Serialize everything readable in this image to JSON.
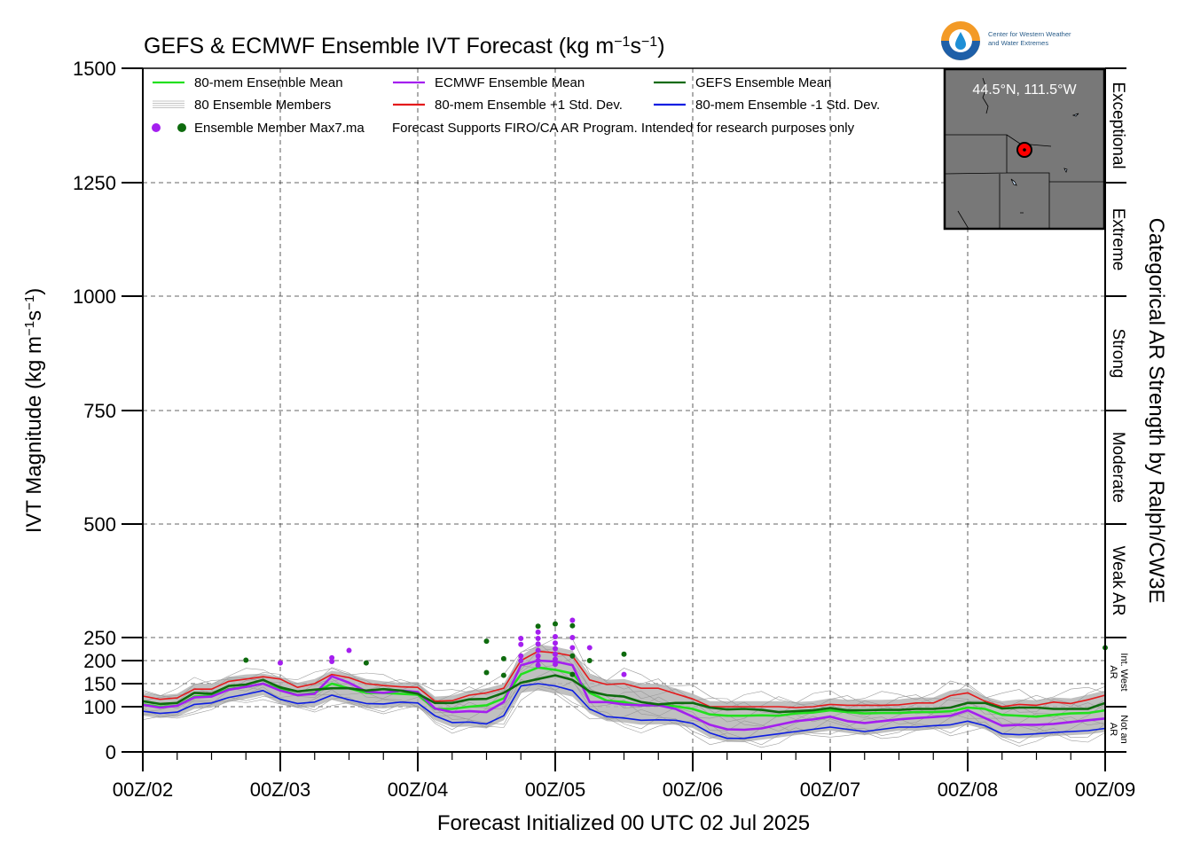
{
  "chart_data": {
    "type": "line",
    "title_main": "GEFS & ECMWF Ensemble IVT Forecast (kg m",
    "title_exp1": "−1",
    "title_mid": "s",
    "title_exp2": "−1",
    "title_end": ")",
    "ylabel_main": "IVT Magnitude (kg m",
    "ylabel_exp1": "−1",
    "ylabel_mid": "s",
    "ylabel_exp2": "−1",
    "ylabel_end": ")",
    "xlabel": "Forecast Initialized 00 UTC 02 Jul 2025",
    "right_label": "Categorical AR Strength by Ralph/CW3E",
    "y_scale": "piecewise-linear",
    "y_axis_breaks": [
      0,
      100,
      150,
      200,
      250,
      500,
      750,
      1000,
      1250,
      1500
    ],
    "ylim": [
      0,
      1500
    ],
    "xlim": [
      0,
      168
    ],
    "x_unit": "forecast hours",
    "y_ticks": [
      "0",
      "100",
      "150",
      "200",
      "250",
      "500",
      "750",
      "1000",
      "1250",
      "1500"
    ],
    "x_ticks": [
      {
        "x": 0,
        "label": "00Z/02"
      },
      {
        "x": 24,
        "label": "00Z/03"
      },
      {
        "x": 48,
        "label": "00Z/04"
      },
      {
        "x": 72,
        "label": "00Z/05"
      },
      {
        "x": 96,
        "label": "00Z/06"
      },
      {
        "x": 120,
        "label": "00Z/07"
      },
      {
        "x": 144,
        "label": "00Z/08"
      },
      {
        "x": 168,
        "label": "00Z/09"
      }
    ],
    "grid": true,
    "legend_location": "top-left",
    "categories": [
      {
        "label": "Not an AR",
        "lines": [
          "Not an",
          "AR"
        ],
        "range": [
          0,
          100
        ],
        "small": true
      },
      {
        "label": "Int. West AR",
        "lines": [
          "Int. West",
          "AR"
        ],
        "range": [
          100,
          250
        ],
        "small": true
      },
      {
        "label": "Weak AR",
        "lines": [
          "Weak AR"
        ],
        "range": [
          250,
          500
        ],
        "small": false
      },
      {
        "label": "Moderate",
        "lines": [
          "Moderate"
        ],
        "range": [
          500,
          750
        ],
        "small": false
      },
      {
        "label": "Strong",
        "lines": [
          "Strong"
        ],
        "range": [
          750,
          1000
        ],
        "small": false
      },
      {
        "label": "Extreme",
        "lines": [
          "Extreme"
        ],
        "range": [
          1000,
          1250
        ],
        "small": false
      },
      {
        "label": "Exceptional",
        "lines": [
          "Exceptional"
        ],
        "range": [
          1250,
          1500
        ],
        "small": false
      }
    ],
    "series": [
      {
        "name": "80-mem Ensemble +1 Std. Dev.",
        "color": "#e41a1c",
        "x": [
          0,
          3,
          6,
          9,
          12,
          15,
          18,
          21,
          24,
          27,
          30,
          33,
          36,
          39,
          42,
          45,
          48,
          51,
          54,
          57,
          60,
          63,
          66,
          69,
          72,
          75,
          78,
          81,
          84,
          87,
          90,
          93,
          96,
          99,
          102,
          105,
          108,
          111,
          114,
          117,
          120,
          123,
          126,
          129,
          132,
          135,
          138,
          141,
          144,
          147,
          150,
          153,
          156,
          159,
          162,
          165,
          168
        ],
        "y": [
          123,
          116,
          119,
          138,
          138,
          155,
          160,
          165,
          160,
          142,
          150,
          170,
          163,
          150,
          146,
          143,
          142,
          112,
          113,
          125,
          130,
          140,
          200,
          220,
          217,
          210,
          158,
          148,
          150,
          140,
          140,
          128,
          117,
          100,
          100,
          100,
          100,
          100,
          98,
          100,
          105,
          103,
          103,
          103,
          104,
          108,
          108,
          124,
          130,
          112,
          100,
          105,
          103,
          110,
          107,
          115,
          125
        ]
      },
      {
        "name": "80-mem Ensemble Mean",
        "color": "#22e01e",
        "x": [
          0,
          3,
          6,
          9,
          12,
          15,
          18,
          21,
          24,
          27,
          30,
          33,
          36,
          39,
          42,
          45,
          48,
          51,
          54,
          57,
          60,
          63,
          66,
          69,
          72,
          75,
          78,
          81,
          84,
          87,
          90,
          93,
          96,
          99,
          102,
          105,
          108,
          111,
          114,
          117,
          120,
          123,
          126,
          129,
          132,
          135,
          138,
          141,
          144,
          147,
          150,
          153,
          156,
          159,
          162,
          165,
          168
        ],
        "y": [
          105,
          100,
          102,
          122,
          124,
          138,
          143,
          150,
          138,
          125,
          130,
          150,
          140,
          130,
          130,
          128,
          126,
          95,
          95,
          100,
          103,
          118,
          170,
          185,
          180,
          172,
          130,
          113,
          110,
          103,
          103,
          101,
          95,
          83,
          80,
          80,
          81,
          80,
          85,
          87,
          92,
          88,
          85,
          86,
          86,
          88,
          88,
          90,
          98,
          95,
          82,
          80,
          78,
          82,
          85,
          86,
          92
        ]
      },
      {
        "name": "ECMWF Ensemble Mean",
        "color": "#a41fef",
        "x": [
          0,
          3,
          6,
          9,
          12,
          15,
          18,
          21,
          24,
          27,
          30,
          33,
          36,
          39,
          42,
          45,
          48,
          51,
          54,
          57,
          60,
          63,
          66,
          69,
          72,
          75,
          78,
          81,
          84,
          87,
          90,
          93,
          96,
          99,
          102,
          105,
          108,
          111,
          114,
          117,
          120,
          123,
          126,
          129,
          132,
          135,
          138,
          141,
          144,
          147,
          150,
          153,
          156,
          159,
          162,
          165,
          168
        ],
        "y": [
          104,
          98,
          102,
          120,
          122,
          137,
          143,
          150,
          135,
          125,
          128,
          166,
          152,
          133,
          130,
          135,
          132,
          96,
          88,
          90,
          88,
          110,
          190,
          200,
          198,
          190,
          110,
          110,
          105,
          103,
          103,
          95,
          78,
          60,
          50,
          49,
          52,
          60,
          68,
          72,
          78,
          68,
          64,
          68,
          72,
          75,
          77,
          80,
          92,
          75,
          58,
          60,
          60,
          62,
          66,
          70,
          74
        ]
      },
      {
        "name": "GEFS Ensemble Mean",
        "color": "#0e6b0e",
        "x": [
          0,
          3,
          6,
          9,
          12,
          15,
          18,
          21,
          24,
          27,
          30,
          33,
          36,
          39,
          42,
          45,
          48,
          51,
          54,
          57,
          60,
          63,
          66,
          69,
          72,
          75,
          78,
          81,
          84,
          87,
          90,
          93,
          96,
          99,
          102,
          105,
          108,
          111,
          114,
          117,
          120,
          123,
          126,
          129,
          132,
          135,
          138,
          141,
          144,
          147,
          150,
          153,
          156,
          159,
          162,
          165,
          168
        ],
        "y": [
          112,
          106,
          108,
          130,
          128,
          145,
          148,
          158,
          142,
          133,
          137,
          140,
          140,
          135,
          138,
          135,
          128,
          108,
          108,
          116,
          117,
          130,
          152,
          160,
          168,
          158,
          133,
          125,
          122,
          110,
          105,
          108,
          108,
          98,
          94,
          95,
          93,
          88,
          90,
          92,
          97,
          92,
          92,
          93,
          93,
          95,
          95,
          98,
          108,
          108,
          96,
          98,
          98,
          95,
          95,
          95,
          108
        ]
      },
      {
        "name": "80-mem Ensemble -1 Std. Dev.",
        "color": "#0d1ee2",
        "x": [
          0,
          3,
          6,
          9,
          12,
          15,
          18,
          21,
          24,
          27,
          30,
          33,
          36,
          39,
          42,
          45,
          48,
          51,
          54,
          57,
          60,
          63,
          66,
          69,
          72,
          75,
          78,
          81,
          84,
          87,
          90,
          93,
          96,
          99,
          102,
          105,
          108,
          111,
          114,
          117,
          120,
          123,
          126,
          129,
          132,
          135,
          138,
          141,
          144,
          147,
          150,
          153,
          156,
          159,
          162,
          165,
          168
        ],
        "y": [
          90,
          85,
          88,
          105,
          108,
          120,
          127,
          135,
          116,
          107,
          110,
          125,
          115,
          107,
          106,
          110,
          108,
          80,
          65,
          66,
          62,
          80,
          145,
          150,
          145,
          135,
          95,
          78,
          75,
          70,
          71,
          70,
          63,
          42,
          30,
          30,
          35,
          40,
          45,
          50,
          55,
          50,
          45,
          50,
          55,
          55,
          58,
          60,
          68,
          58,
          40,
          38,
          40,
          43,
          45,
          47,
          52
        ]
      }
    ],
    "members_note": "80 Ensemble Members",
    "member_spread_upper": [
      130,
      125,
      128,
      150,
      150,
      165,
      170,
      172,
      165,
      152,
      160,
      178,
      172,
      160,
      155,
      152,
      152,
      122,
      124,
      135,
      140,
      150,
      210,
      235,
      230,
      222,
      170,
      158,
      160,
      150,
      150,
      140,
      128,
      112,
      112,
      112,
      112,
      112,
      110,
      112,
      118,
      115,
      115,
      115,
      116,
      120,
      120,
      135,
      140,
      122,
      112,
      116,
      114,
      120,
      118,
      126,
      135
    ],
    "member_spread_lower": [
      80,
      75,
      78,
      95,
      98,
      110,
      117,
      125,
      106,
      97,
      100,
      115,
      105,
      97,
      96,
      100,
      98,
      70,
      55,
      56,
      52,
      70,
      130,
      135,
      130,
      122,
      85,
      68,
      65,
      60,
      61,
      60,
      53,
      32,
      22,
      22,
      27,
      32,
      37,
      42,
      47,
      42,
      37,
      42,
      47,
      47,
      50,
      52,
      60,
      50,
      32,
      30,
      32,
      35,
      37,
      39,
      44
    ],
    "max_points": [
      {
        "x": 18,
        "y": 201,
        "color": "#0e6b0e"
      },
      {
        "x": 24,
        "y": 195,
        "color": "#a41fef"
      },
      {
        "x": 33,
        "y": 206,
        "color": "#a41fef"
      },
      {
        "x": 33,
        "y": 198,
        "color": "#a41fef"
      },
      {
        "x": 36,
        "y": 222,
        "color": "#a41fef"
      },
      {
        "x": 39,
        "y": 195,
        "color": "#0e6b0e"
      },
      {
        "x": 60,
        "y": 242,
        "color": "#0e6b0e"
      },
      {
        "x": 60,
        "y": 174,
        "color": "#0e6b0e"
      },
      {
        "x": 63,
        "y": 204,
        "color": "#0e6b0e"
      },
      {
        "x": 63,
        "y": 168,
        "color": "#0e6b0e"
      },
      {
        "x": 66,
        "y": 248,
        "color": "#a41fef"
      },
      {
        "x": 66,
        "y": 235,
        "color": "#a41fef"
      },
      {
        "x": 66,
        "y": 210,
        "color": "#a41fef"
      },
      {
        "x": 66,
        "y": 200,
        "color": "#a41fef"
      },
      {
        "x": 69,
        "y": 275,
        "color": "#0e6b0e"
      },
      {
        "x": 69,
        "y": 262,
        "color": "#a41fef"
      },
      {
        "x": 69,
        "y": 248,
        "color": "#a41fef"
      },
      {
        "x": 69,
        "y": 236,
        "color": "#a41fef"
      },
      {
        "x": 69,
        "y": 222,
        "color": "#a41fef"
      },
      {
        "x": 69,
        "y": 210,
        "color": "#a41fef"
      },
      {
        "x": 69,
        "y": 200,
        "color": "#a41fef"
      },
      {
        "x": 69,
        "y": 190,
        "color": "#a41fef"
      },
      {
        "x": 72,
        "y": 280,
        "color": "#0e6b0e"
      },
      {
        "x": 72,
        "y": 252,
        "color": "#a41fef"
      },
      {
        "x": 72,
        "y": 238,
        "color": "#a41fef"
      },
      {
        "x": 72,
        "y": 226,
        "color": "#a41fef"
      },
      {
        "x": 72,
        "y": 214,
        "color": "#a41fef"
      },
      {
        "x": 72,
        "y": 203,
        "color": "#a41fef"
      },
      {
        "x": 72,
        "y": 192,
        "color": "#a41fef"
      },
      {
        "x": 75,
        "y": 288,
        "color": "#a41fef"
      },
      {
        "x": 75,
        "y": 276,
        "color": "#0e6b0e"
      },
      {
        "x": 75,
        "y": 250,
        "color": "#a41fef"
      },
      {
        "x": 75,
        "y": 228,
        "color": "#a41fef"
      },
      {
        "x": 75,
        "y": 210,
        "color": "#0e6b0e"
      },
      {
        "x": 75,
        "y": 170,
        "color": "#0e6b0e"
      },
      {
        "x": 78,
        "y": 228,
        "color": "#a41fef"
      },
      {
        "x": 78,
        "y": 200,
        "color": "#0e6b0e"
      },
      {
        "x": 84,
        "y": 214,
        "color": "#0e6b0e"
      },
      {
        "x": 84,
        "y": 170,
        "color": "#a41fef"
      },
      {
        "x": 168,
        "y": 228,
        "color": "#0e6b0e"
      }
    ],
    "legend": [
      {
        "label": "80-mem Ensemble Mean",
        "kind": "line",
        "color": "#22e01e"
      },
      {
        "label": "ECMWF Ensemble Mean",
        "kind": "line",
        "color": "#a41fef"
      },
      {
        "label": "GEFS Ensemble Mean",
        "kind": "line",
        "color": "#0e6b0e"
      },
      {
        "label": "80 Ensemble Members",
        "kind": "members",
        "color": "#b0b0b0"
      },
      {
        "label": "80-mem Ensemble +1 Std. Dev.",
        "kind": "line",
        "color": "#e41a1c"
      },
      {
        "label": "80-mem Ensemble -1 Std. Dev.",
        "kind": "line",
        "color": "#0d1ee2"
      },
      {
        "label": "Ensemble Member Max7.ma",
        "kind": "dots",
        "colors": [
          "#a41fef",
          "#0e6b0e"
        ]
      },
      {
        "label": "Forecast Supports FIRO/CA AR Program. Intended for research purposes only",
        "kind": "text"
      }
    ],
    "inset_map": {
      "label": "44.5°N, 111.5°W",
      "land_color": "#787878",
      "marker_color": "#ff0000"
    },
    "logo": {
      "line1": "Center for Western Weather",
      "line2": "and Water Extremes"
    }
  }
}
